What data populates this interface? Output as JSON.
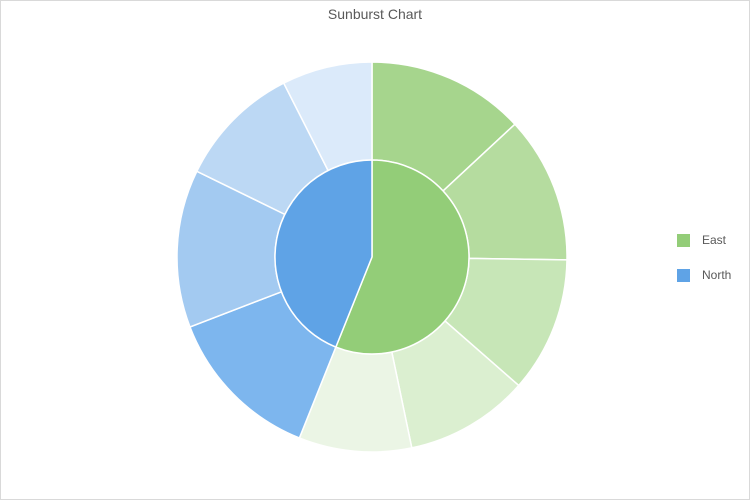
{
  "chart_data": {
    "type": "sunburst",
    "title": "Sunburst Chart",
    "legend_position": "right",
    "series": [
      {
        "name": "East",
        "color": "#93cd78",
        "children": [
          {
            "value": 14,
            "color": "#a6d58d"
          },
          {
            "value": 13,
            "color": "#b5dc9f"
          },
          {
            "value": 12,
            "color": "#c7e6b7"
          },
          {
            "value": 11,
            "color": "#dbefd0"
          },
          {
            "value": 10,
            "color": "#ebf5e5"
          }
        ]
      },
      {
        "name": "North",
        "color": "#5fa3e6",
        "children": [
          {
            "value": 14,
            "color": "#7db6ee"
          },
          {
            "value": 14,
            "color": "#a3caf1"
          },
          {
            "value": 11,
            "color": "#bcd8f4"
          },
          {
            "value": 8,
            "color": "#dbeafa"
          }
        ]
      }
    ]
  }
}
